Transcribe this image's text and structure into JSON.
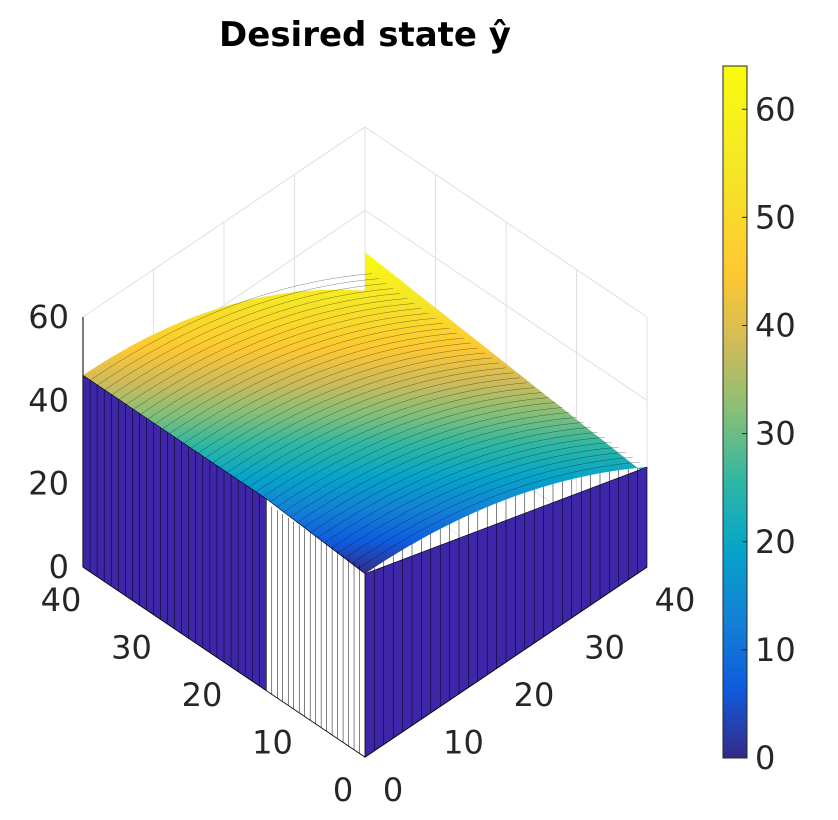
{
  "chart_data": {
    "type": "surface3d",
    "title": "Desired state ŷ",
    "x_ticks": [
      "0",
      "10",
      "20",
      "30",
      "40"
    ],
    "y_ticks": [
      "0",
      "10",
      "20",
      "30",
      "40"
    ],
    "z_ticks": [
      "0",
      "20",
      "40",
      "60"
    ],
    "xlim": [
      0,
      40
    ],
    "ylim": [
      0,
      40
    ],
    "zlim": [
      0,
      60
    ],
    "z_max": 64,
    "grid": true,
    "colormap": "parula",
    "colorbar": {
      "ticks": [
        "0",
        "10",
        "20",
        "30",
        "40",
        "50",
        "60"
      ],
      "range": [
        0,
        64
      ],
      "placement": "right"
    },
    "faces": {
      "left_wall_color": "#3e26a8",
      "right_wall_color": "#3e26a8",
      "notch_color": "#ffffff"
    }
  }
}
